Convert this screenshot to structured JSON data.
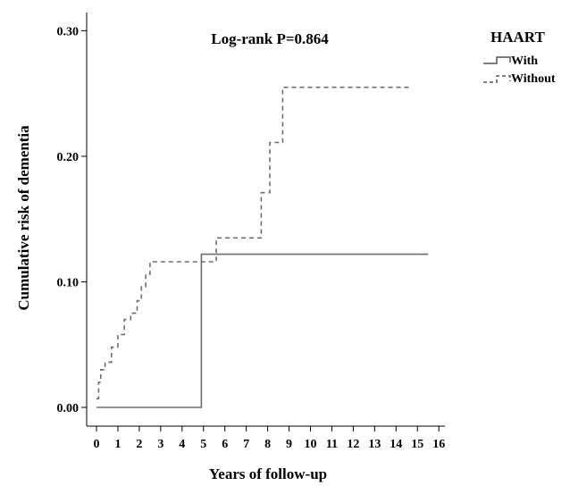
{
  "chart_data": {
    "type": "line",
    "step": true,
    "annotation": "Log-rank P=0.864",
    "xlabel": "Years of follow-up",
    "ylabel": "Cumulative risk of dementia",
    "xlim": [
      -0.5,
      16.5
    ],
    "ylim": [
      -0.02,
      0.3
    ],
    "x_ticks": [
      0,
      1,
      2,
      3,
      4,
      5,
      6,
      7,
      8,
      9,
      10,
      11,
      12,
      13,
      14,
      15,
      16
    ],
    "y_ticks": [
      0.0,
      0.1,
      0.2,
      0.3
    ],
    "y_tick_labels": [
      "0.00",
      "0.10",
      "0.20",
      "0.30"
    ],
    "grid": false,
    "legend": {
      "title": "HAART",
      "placement": "top-right",
      "entries": [
        "With",
        "Without"
      ]
    },
    "series": [
      {
        "name": "With",
        "style": "solid",
        "color": "#6e6e6e",
        "x": [
          0,
          4.9,
          4.9,
          15.5
        ],
        "y": [
          0,
          0,
          0.122,
          0.122
        ]
      },
      {
        "name": "Without",
        "style": "dashed",
        "color": "#6e6e6e",
        "x": [
          0.0,
          0.1,
          0.1,
          0.2,
          0.2,
          0.4,
          0.4,
          0.7,
          0.7,
          1.0,
          1.0,
          1.3,
          1.3,
          1.6,
          1.6,
          1.9,
          1.9,
          2.1,
          2.1,
          2.3,
          2.3,
          2.5,
          2.5,
          5.0,
          5.0,
          5.6,
          5.6,
          7.7,
          7.7,
          8.1,
          8.1,
          8.7,
          8.7,
          14.6
        ],
        "y": [
          0.007,
          0.007,
          0.02,
          0.02,
          0.03,
          0.03,
          0.036,
          0.036,
          0.048,
          0.048,
          0.058,
          0.058,
          0.07,
          0.07,
          0.075,
          0.075,
          0.085,
          0.085,
          0.096,
          0.096,
          0.106,
          0.106,
          0.116,
          0.116,
          0.116,
          0.116,
          0.135,
          0.135,
          0.171,
          0.171,
          0.211,
          0.211,
          0.255,
          0.255
        ]
      }
    ]
  }
}
